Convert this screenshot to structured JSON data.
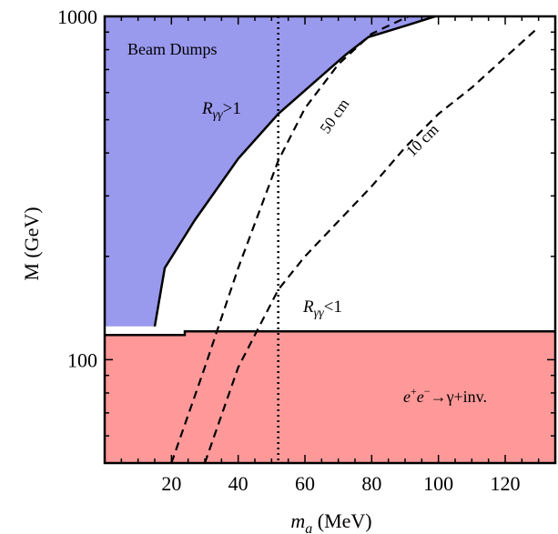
{
  "chart_data": {
    "type": "area",
    "xlabel_main": "m",
    "xlabel_sub": "a",
    "xlabel_unit": " (MeV)",
    "ylabel": "M (GeV)",
    "xlim": [
      0,
      135
    ],
    "ylim": [
      50,
      1000
    ],
    "yscale": "log",
    "xticks": [
      20,
      40,
      60,
      80,
      100,
      120
    ],
    "xtick_labels": [
      "20",
      "40",
      "60",
      "80",
      "100",
      "120"
    ],
    "yticks": [
      100,
      1000
    ],
    "ytick_labels": [
      "100",
      "1000"
    ],
    "grid": false,
    "regions": [
      {
        "label": "Beam Dumps",
        "color": "#9999ee",
        "boundary": [
          [
            0,
            1000
          ],
          [
            99,
            1000
          ],
          [
            91,
            945
          ],
          [
            79,
            870
          ],
          [
            72,
            770
          ],
          [
            52,
            520
          ],
          [
            40,
            385
          ],
          [
            27,
            255
          ],
          [
            18,
            185
          ],
          [
            15,
            125
          ],
          [
            0,
            125
          ]
        ]
      },
      {
        "label_pre": "e",
        "label_mid": "e",
        "label_post": "→γ+inv.",
        "color": "#ff9999",
        "boundary": [
          [
            0,
            50
          ],
          [
            135,
            50
          ],
          [
            135,
            121
          ],
          [
            24,
            121
          ],
          [
            24,
            118
          ],
          [
            0,
            118
          ]
        ]
      }
    ],
    "curves": [
      {
        "label": "50 cm",
        "style": "dashed",
        "x": [
          20,
          30,
          40,
          52,
          60,
          70,
          80,
          91
        ],
        "y": [
          50,
          95,
          185,
          380,
          540,
          725,
          890,
          1000
        ]
      },
      {
        "label": "10 cm",
        "style": "dashed",
        "x": [
          30,
          40,
          52,
          60,
          70,
          80,
          90,
          100,
          110,
          120,
          130
        ],
        "y": [
          50,
          95,
          160,
          200,
          253,
          320,
          415,
          520,
          620,
          760,
          930
        ]
      }
    ],
    "vline": {
      "x": 52,
      "style": "dotted"
    },
    "annotations": {
      "r_upper_main": "R",
      "r_upper_sub": "γγ",
      "r_upper_rest": ">1",
      "r_lower_main": "R",
      "r_lower_sub": "γγ",
      "r_lower_rest": "<1",
      "pm_plus": "+",
      "pm_minus": "−"
    }
  }
}
